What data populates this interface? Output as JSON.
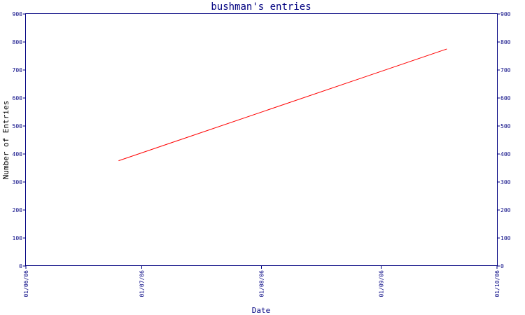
{
  "chart_data": {
    "type": "line",
    "title": "bushman's entries",
    "xlabel": "Date",
    "ylabel": "Number of Entries",
    "ylim": [
      0,
      900
    ],
    "yticks": [
      0,
      100,
      200,
      300,
      400,
      500,
      600,
      700,
      800,
      900
    ],
    "xticks": [
      "01/06/06",
      "01/07/06",
      "01/08/06",
      "01/09/06",
      "01/10/06"
    ],
    "xlim": [
      "2006-06-01",
      "2006-10-01"
    ],
    "series": [
      {
        "x": [
          "2006-06-25",
          "2006-09-18"
        ],
        "values": [
          376,
          775
        ]
      }
    ],
    "grid": false,
    "colors": {
      "axis": "#000080",
      "line": "#ff0000",
      "ylabel": "#000000",
      "background": "#ffffff"
    }
  }
}
